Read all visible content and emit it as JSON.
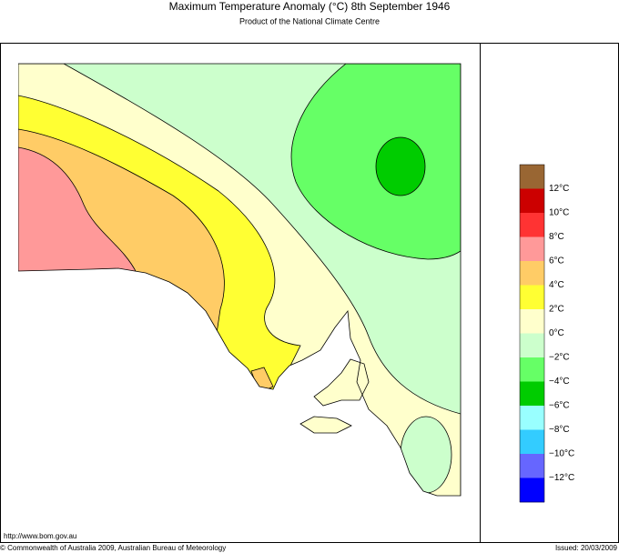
{
  "header": {
    "title": "Maximum Temperature Anomaly (°C)  8th September 1946",
    "subtitle": "Product of the National Climate Centre"
  },
  "legend": {
    "colors": [
      "#996633",
      "#cc0000",
      "#ff3333",
      "#ff9999",
      "#ffcc66",
      "#ffff33",
      "#ffffcc",
      "#ccffcc",
      "#66ff66",
      "#00cc00",
      "#99ffff",
      "#33ccff",
      "#6666ff",
      "#0000ff"
    ],
    "labels": [
      "12°C",
      "10°C",
      "8°C",
      "6°C",
      "4°C",
      "2°C",
      "0°C",
      "−2°C",
      "−4°C",
      "−6°C",
      "−8°C",
      "−10°C",
      "−12°C"
    ]
  },
  "footer": {
    "url": "http://www.bom.gov.au",
    "copyright": "© Commonwealth of Australia 2009, Australian Bureau of Meteorology",
    "issued": "Issued: 20/03/2009"
  }
}
